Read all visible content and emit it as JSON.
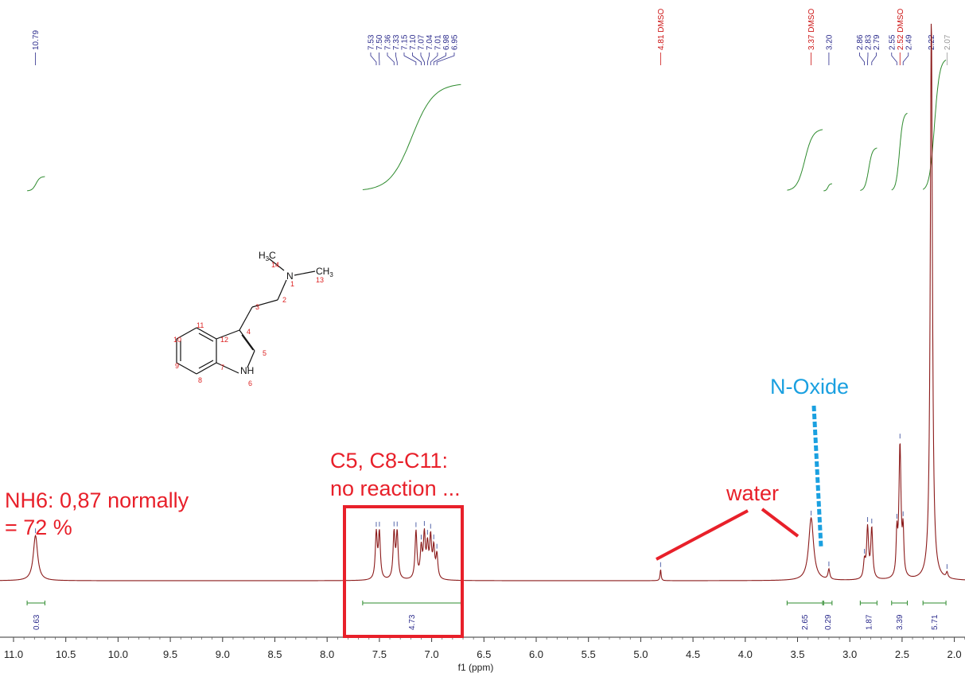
{
  "chart_data": {
    "type": "line",
    "title": "",
    "xlabel": "f1 (ppm)",
    "ylabel": "",
    "x_reversed": true,
    "xlim": [
      11.0,
      2.0
    ],
    "x_ticks": [
      "11.0",
      "10.5",
      "10.0",
      "9.5",
      "9.0",
      "8.5",
      "8.0",
      "7.5",
      "7.0",
      "6.5",
      "6.0",
      "5.5",
      "5.0",
      "4.5",
      "4.0",
      "3.5",
      "3.0",
      "2.5",
      "2.0"
    ],
    "colors": {
      "spectrum": "#8b1a1a",
      "integral": "#2e8b2e",
      "peak_label": "#2b2b8c",
      "dmso_label": "#cc1111",
      "annotation_red": "#e8202a",
      "annotation_blue": "#1aa0e0"
    },
    "peak_labels": [
      {
        "ppm": 10.79,
        "text": "10.79"
      },
      {
        "ppm": 7.53,
        "text": "7.53"
      },
      {
        "ppm": 7.5,
        "text": "7.50"
      },
      {
        "ppm": 7.36,
        "text": "7.36"
      },
      {
        "ppm": 7.33,
        "text": "7.33"
      },
      {
        "ppm": 7.15,
        "text": "7.15"
      },
      {
        "ppm": 7.1,
        "text": "7.10"
      },
      {
        "ppm": 7.07,
        "text": "7.07"
      },
      {
        "ppm": 7.04,
        "text": "7.04"
      },
      {
        "ppm": 7.01,
        "text": "7.01"
      },
      {
        "ppm": 6.98,
        "text": "6.98"
      },
      {
        "ppm": 6.95,
        "text": "6.95"
      },
      {
        "ppm": 4.81,
        "text": "4.81 DMSO",
        "kind": "dmso"
      },
      {
        "ppm": 3.37,
        "text": "3.37 DMSO",
        "kind": "dmso"
      },
      {
        "ppm": 3.2,
        "text": "3.20"
      },
      {
        "ppm": 2.86,
        "text": "2.86"
      },
      {
        "ppm": 2.83,
        "text": "2.83"
      },
      {
        "ppm": 2.79,
        "text": "2.79"
      },
      {
        "ppm": 2.55,
        "text": "2.55"
      },
      {
        "ppm": 2.52,
        "text": "2.52 DMSO",
        "kind": "dmso"
      },
      {
        "ppm": 2.49,
        "text": "2.49"
      },
      {
        "ppm": 2.22,
        "text": "2.22"
      },
      {
        "ppm": 2.07,
        "text": "2.07",
        "kind": "grey"
      }
    ],
    "peaks": [
      {
        "ppm": 10.79,
        "height": 0.08,
        "width": 0.025
      },
      {
        "ppm": 7.53,
        "height": 0.081,
        "width": 0.011
      },
      {
        "ppm": 7.5,
        "height": 0.081,
        "width": 0.011
      },
      {
        "ppm": 7.36,
        "height": 0.081,
        "width": 0.011
      },
      {
        "ppm": 7.33,
        "height": 0.081,
        "width": 0.011
      },
      {
        "ppm": 7.15,
        "height": 0.085,
        "width": 0.011
      },
      {
        "ppm": 7.1,
        "height": 0.052,
        "width": 0.011
      },
      {
        "ppm": 7.07,
        "height": 0.075,
        "width": 0.011
      },
      {
        "ppm": 7.04,
        "height": 0.055,
        "width": 0.011
      },
      {
        "ppm": 7.01,
        "height": 0.07,
        "width": 0.011
      },
      {
        "ppm": 6.98,
        "height": 0.052,
        "width": 0.011
      },
      {
        "ppm": 6.95,
        "height": 0.042,
        "width": 0.011
      },
      {
        "ppm": 4.81,
        "height": 0.02,
        "width": 0.006
      },
      {
        "ppm": 3.37,
        "height": 0.111,
        "width": 0.028
      },
      {
        "ppm": 3.2,
        "height": 0.018,
        "width": 0.01
      },
      {
        "ppm": 2.86,
        "height": 0.03,
        "width": 0.011
      },
      {
        "ppm": 2.83,
        "height": 0.089,
        "width": 0.011
      },
      {
        "ppm": 2.79,
        "height": 0.089,
        "width": 0.011
      },
      {
        "ppm": 2.55,
        "height": 0.07,
        "width": 0.008
      },
      {
        "ppm": 2.52,
        "height": 0.236,
        "width": 0.012
      },
      {
        "ppm": 2.49,
        "height": 0.074,
        "width": 0.008
      },
      {
        "ppm": 2.22,
        "height": 1.0,
        "width": 0.012
      },
      {
        "ppm": 2.07,
        "height": 0.01,
        "width": 0.01
      }
    ],
    "integrals": [
      {
        "from": 10.87,
        "to": 10.7,
        "value": "0.63",
        "rel_start": 0.0,
        "rel_end": 0.014
      },
      {
        "from": 7.66,
        "to": 6.72,
        "value": "4.73",
        "rel_start": 0.0,
        "rel_end": 0.104
      },
      {
        "from": 3.6,
        "to": 3.26,
        "value": "2.65",
        "rel_start": 0.0,
        "rel_end": 0.06
      },
      {
        "from": 3.25,
        "to": 3.17,
        "value": "0.29",
        "rel_start": 0.0,
        "rel_end": 0.007
      },
      {
        "from": 2.9,
        "to": 2.74,
        "value": "1.87",
        "rel_start": 0.0,
        "rel_end": 0.042
      },
      {
        "from": 2.6,
        "to": 2.45,
        "value": "3.39",
        "rel_start": 0.0,
        "rel_end": 0.076
      },
      {
        "from": 2.3,
        "to": 2.08,
        "value": "5.71",
        "rel_start": 0.0,
        "rel_end": 0.128
      }
    ],
    "annotations": {
      "nh6_line1": "NH6: 0,87 normally",
      "nh6_line2": "= 72 %",
      "c5_line1": "C5, C8-C11:",
      "c5_line2": "no reaction ...",
      "water": "water",
      "n_oxide": "N-Oxide"
    },
    "structure": {
      "atoms": {
        "h3c_main": "H",
        "h3c_sub": "3",
        "h3c_c": "C",
        "n": "N",
        "ch3": "CH",
        "ch3_sub": "3",
        "nh": "NH"
      },
      "numbers": [
        "14",
        "1",
        "13",
        "2",
        "3",
        "4",
        "11",
        "12",
        "10",
        "5",
        "9",
        "7",
        "8",
        "6"
      ]
    }
  }
}
